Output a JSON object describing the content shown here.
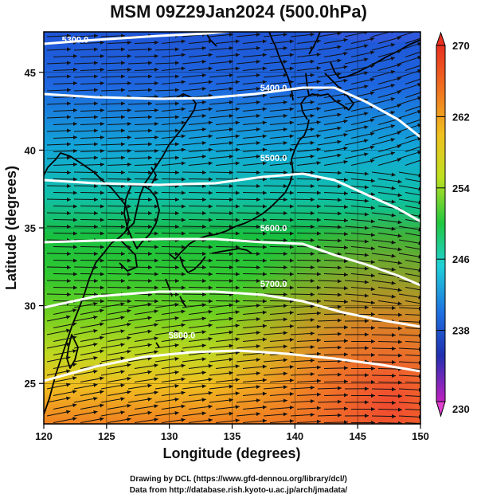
{
  "title": "MSM 09Z29Jan2024 (500.0hPa)",
  "xaxis": {
    "label": "Longitude (degrees)",
    "ticks": [
      "120",
      "125",
      "130",
      "135",
      "140",
      "145",
      "150"
    ],
    "range": [
      120,
      150
    ]
  },
  "yaxis": {
    "label": "Latitude  (degrees)",
    "ticks": [
      "25",
      "30",
      "35",
      "40",
      "45"
    ],
    "range": [
      22.4,
      47.6
    ]
  },
  "colorbar": {
    "ticks": [
      "270",
      "262",
      "254",
      "246",
      "238",
      "230"
    ],
    "range": [
      230,
      270
    ],
    "colors": [
      "#c020c0",
      "#3030c0",
      "#2070e0",
      "#20c0e0",
      "#20d060",
      "#80e020",
      "#e0e020",
      "#f0a020",
      "#e04020"
    ]
  },
  "contours": [
    {
      "label": "5300.0",
      "lon": 122.5,
      "lat": 46.9
    },
    {
      "label": "5400.0",
      "lon": 138.3,
      "lat": 43.8
    },
    {
      "label": "5500.0",
      "lon": 138.3,
      "lat": 39.3
    },
    {
      "label": "5600.0",
      "lon": 138.3,
      "lat": 34.8
    },
    {
      "label": "5700.0",
      "lon": 138.3,
      "lat": 31.2
    },
    {
      "label": "5800.0",
      "lon": 131.0,
      "lat": 27.9
    }
  ],
  "footer": {
    "line1": "Drawing by DCL (https://www.gfd-dennou.org/library/dcl/)",
    "line2": "Data from http://database.rish.kyoto-u.ac.jp/arch/jmadata/"
  }
}
